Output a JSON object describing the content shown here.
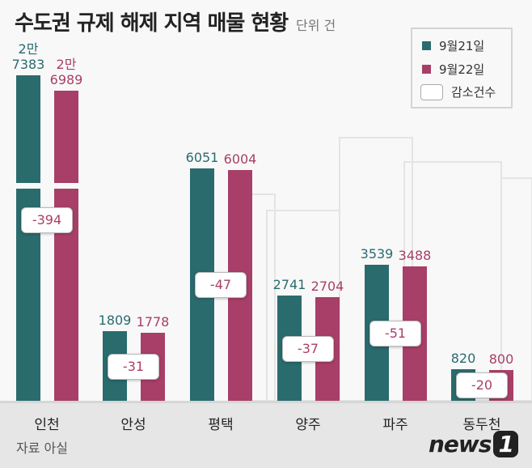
{
  "title": "수도권 규제 해제 지역 매물 현황",
  "unit": "단위 건",
  "legend": {
    "s1": "9월21일",
    "s2": "9월22일",
    "delta": "감소건수"
  },
  "source": "자료 아실",
  "logo": "news1",
  "colors": {
    "s1": "#2a6b6e",
    "s2": "#a83f68"
  },
  "chart_data": {
    "type": "bar",
    "categories": [
      "인천",
      "안성",
      "평택",
      "양주",
      "파주",
      "동두천"
    ],
    "series": [
      {
        "name": "9월21일",
        "values": [
          27383,
          1809,
          6051,
          2741,
          3539,
          820
        ],
        "labels": [
          "2만\n7383",
          "1809",
          "6051",
          "2741",
          "3539",
          "820"
        ]
      },
      {
        "name": "9월22일",
        "values": [
          26989,
          1778,
          6004,
          2704,
          3488,
          800
        ],
        "labels": [
          "2만\n6989",
          "1778",
          "6004",
          "2704",
          "3488",
          "800"
        ]
      }
    ],
    "deltas": [
      "-394",
      "-31",
      "-47",
      "-37",
      "-51",
      "-20"
    ],
    "axis_break": true,
    "grid": false,
    "legend_position": "top-right"
  }
}
